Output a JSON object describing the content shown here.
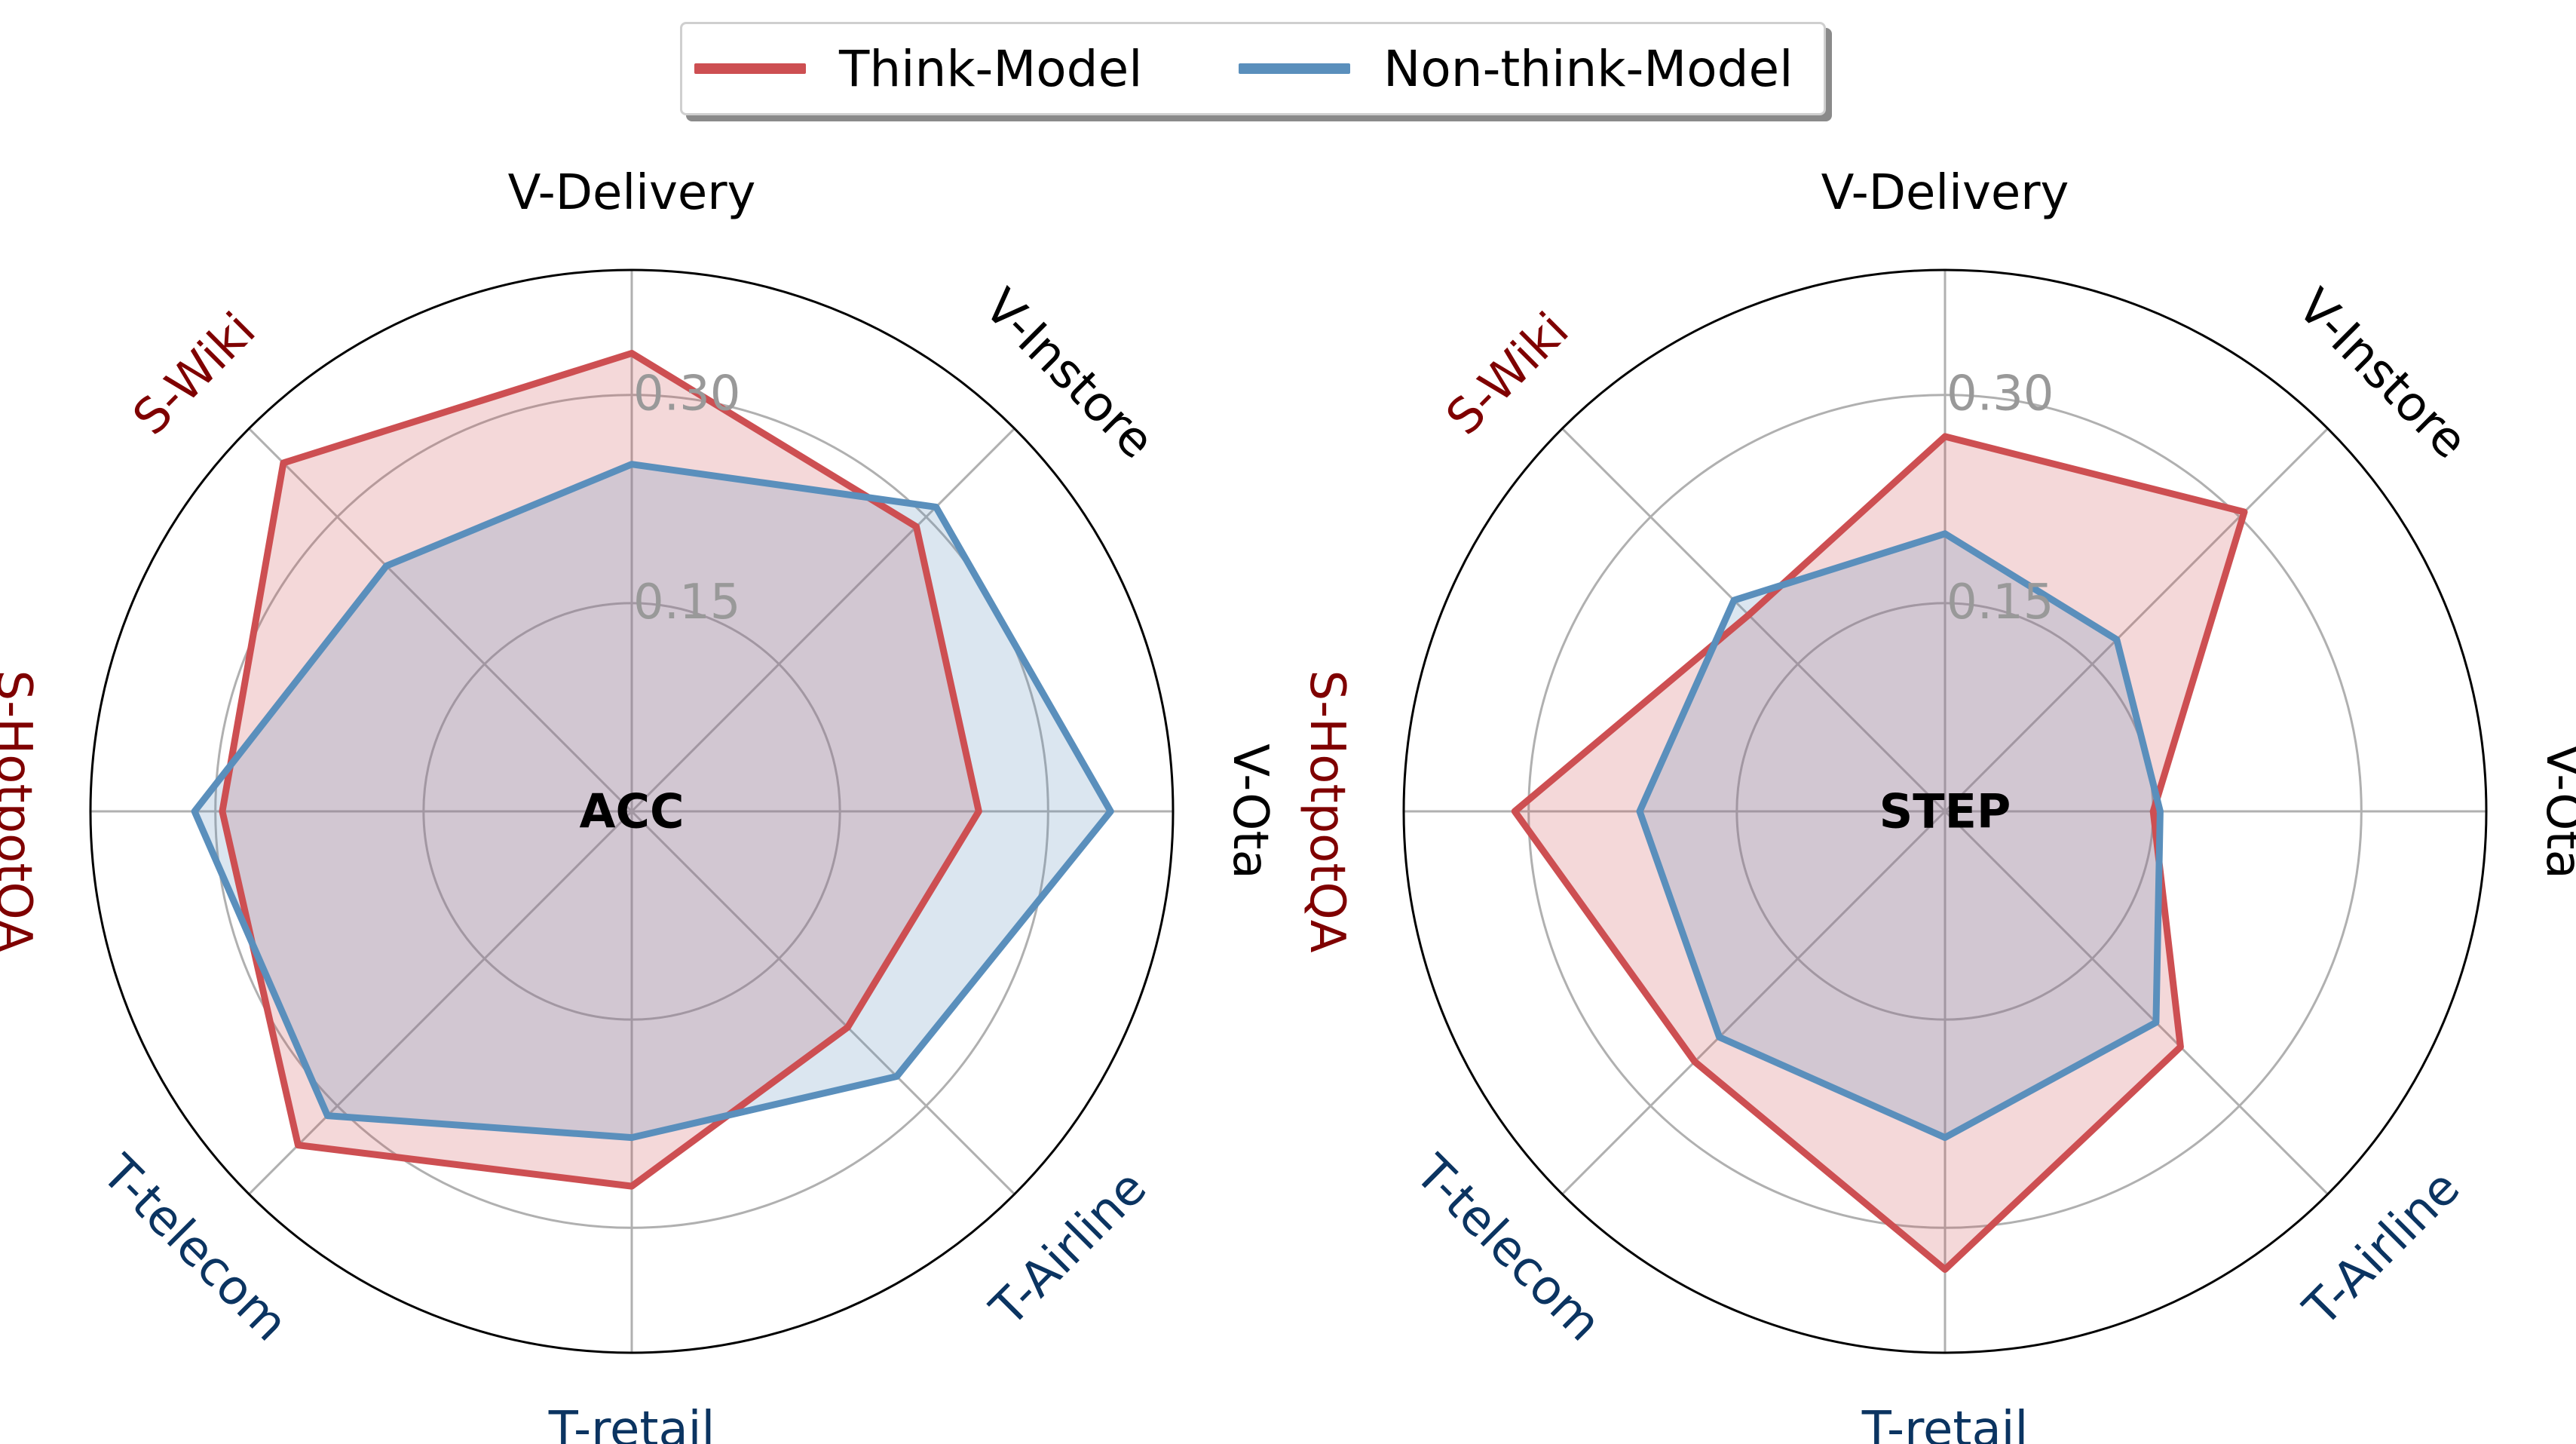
{
  "legend": {
    "think_label": "Think-Model",
    "nonthink_label": "Non-think-Model"
  },
  "colors": {
    "think": "#cd4f52",
    "think_fill": "#f5d4d6",
    "nonthink": "#5a8fbc",
    "nonthink_fill": "#e3ebf4",
    "grid": "#b0b0b0",
    "tick_label": "#999999",
    "v_group": "#000000",
    "s_group": "#7f0000",
    "t_group": "#0b3461"
  },
  "chart_data": [
    {
      "type": "radar",
      "title": "ACC",
      "categories": [
        "V-Delivery",
        "V-Instore",
        "V-Ota",
        "T-Airline",
        "T-retail",
        "T-telecom",
        "S-HotpotQA",
        "S-Wiki"
      ],
      "category_groups": [
        "V",
        "V",
        "V",
        "T",
        "T",
        "T",
        "S",
        "S"
      ],
      "rlim": [
        0,
        0.39
      ],
      "rticks": [
        0.15,
        0.3
      ],
      "rtick_labels": [
        "0.15",
        "0.30"
      ],
      "series": [
        {
          "name": "Think-Model",
          "values": [
            0.33,
            0.29,
            0.25,
            0.22,
            0.27,
            0.34,
            0.295,
            0.355
          ]
        },
        {
          "name": "Non-think-Model",
          "values": [
            0.25,
            0.31,
            0.345,
            0.27,
            0.235,
            0.31,
            0.315,
            0.25
          ]
        }
      ]
    },
    {
      "type": "radar",
      "title": "STEP",
      "categories": [
        "V-Delivery",
        "V-Instore",
        "V-Ota",
        "T-Airline",
        "T-retail",
        "T-telecom",
        "S-HotpotQA",
        "S-Wiki"
      ],
      "category_groups": [
        "V",
        "V",
        "V",
        "T",
        "T",
        "T",
        "S",
        "S"
      ],
      "rlim": [
        0,
        0.39
      ],
      "rticks": [
        0.15,
        0.3
      ],
      "rtick_labels": [
        "0.15",
        "0.30"
      ],
      "series": [
        {
          "name": "Think-Model",
          "values": [
            0.27,
            0.305,
            0.15,
            0.24,
            0.33,
            0.255,
            0.31,
            0.2
          ]
        },
        {
          "name": "Non-think-Model",
          "values": [
            0.2,
            0.175,
            0.155,
            0.215,
            0.235,
            0.23,
            0.22,
            0.215
          ]
        }
      ]
    }
  ]
}
